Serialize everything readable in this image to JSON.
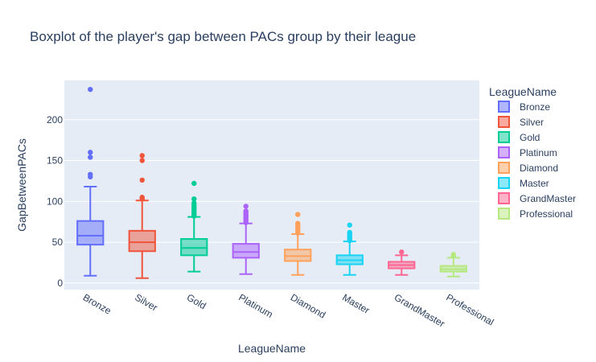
{
  "chart_data": {
    "type": "box",
    "title": "Boxplot of the player's gap between PACs group by their league",
    "xlabel": "LeagueName",
    "ylabel": "GapBetweenPACs",
    "ylim": [
      -8,
      248
    ],
    "yticks": [
      0,
      50,
      100,
      150,
      200
    ],
    "grid": true,
    "legend_position": "right",
    "legend_title": "LeagueName",
    "categories": [
      "Bronze",
      "Silver",
      "Gold",
      "Platinum",
      "Diamond",
      "Master",
      "GrandMaster",
      "Professional"
    ],
    "series": [
      {
        "name": "Bronze",
        "color": "#636efa",
        "min": 9,
        "q1": 47,
        "median": 58,
        "q3": 76,
        "max": 118,
        "outliers": [
          130,
          133,
          154,
          160,
          237
        ]
      },
      {
        "name": "Silver",
        "color": "#ef553b",
        "min": 6,
        "q1": 39,
        "median": 50,
        "q3": 64,
        "max": 101,
        "outliers": [
          103,
          105,
          126,
          150,
          156
        ]
      },
      {
        "name": "Gold",
        "color": "#00cc96",
        "min": 14,
        "q1": 34,
        "median": 43,
        "q3": 54,
        "max": 81,
        "outliers": [
          82,
          84,
          86,
          88,
          90,
          92,
          94,
          96,
          98,
          103,
          122
        ]
      },
      {
        "name": "Platinum",
        "color": "#ab63fa",
        "min": 11,
        "q1": 31,
        "median": 38,
        "q3": 48,
        "max": 73,
        "outliers": [
          74,
          76,
          78,
          80,
          82,
          84,
          86,
          88,
          94
        ]
      },
      {
        "name": "Diamond",
        "color": "#ffa15a",
        "min": 10,
        "q1": 27,
        "median": 33,
        "q3": 41,
        "max": 60,
        "outliers": [
          61,
          63,
          65,
          67,
          69,
          71,
          73,
          84
        ]
      },
      {
        "name": "Master",
        "color": "#19d3f3",
        "min": 10,
        "q1": 23,
        "median": 28,
        "q3": 34,
        "max": 51,
        "outliers": [
          52,
          54,
          56,
          58,
          60,
          62,
          71
        ]
      },
      {
        "name": "GrandMaster",
        "color": "#ff6692",
        "min": 10,
        "q1": 18,
        "median": 22,
        "q3": 26,
        "max": 34,
        "outliers": [
          38
        ]
      },
      {
        "name": "Professional",
        "color": "#b6e880",
        "min": 8,
        "q1": 14,
        "median": 17,
        "q3": 21,
        "max": 31,
        "outliers": [
          33,
          35
        ]
      }
    ]
  }
}
